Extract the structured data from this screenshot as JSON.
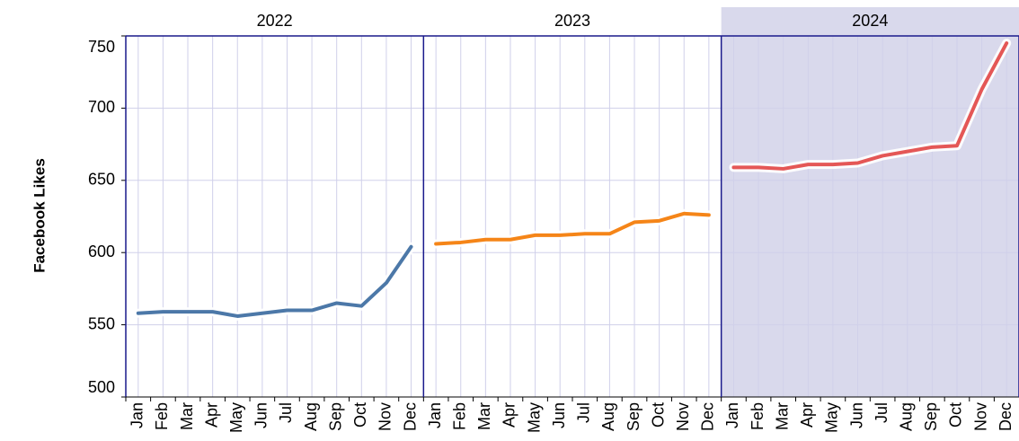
{
  "chart_data": {
    "type": "line",
    "y_label": "Facebook Likes",
    "categories": [
      "Jan",
      "Feb",
      "Mar",
      "Apr",
      "May",
      "Jun",
      "Jul",
      "Aug",
      "Sep",
      "Oct",
      "Nov",
      "Dec"
    ],
    "series": [
      {
        "name": "2022",
        "color": "#4c78a8",
        "highlighted": false,
        "values": [
          558,
          559,
          559,
          559,
          556,
          558,
          560,
          560,
          565,
          563,
          579,
          604
        ]
      },
      {
        "name": "2023",
        "color": "#f58518",
        "highlighted": false,
        "values": [
          606,
          607,
          609,
          609,
          612,
          612,
          613,
          613,
          621,
          622,
          627,
          626
        ]
      },
      {
        "name": "2024",
        "color": "#e45756",
        "highlighted": true,
        "values": [
          659,
          659,
          658,
          661,
          661,
          662,
          667,
          670,
          673,
          674,
          713,
          745
        ]
      }
    ],
    "ylim": [
      500,
      750
    ],
    "yticks": [
      500,
      550,
      600,
      650,
      700,
      750
    ],
    "grid": true,
    "highlight_color": "#d9d9ec"
  }
}
